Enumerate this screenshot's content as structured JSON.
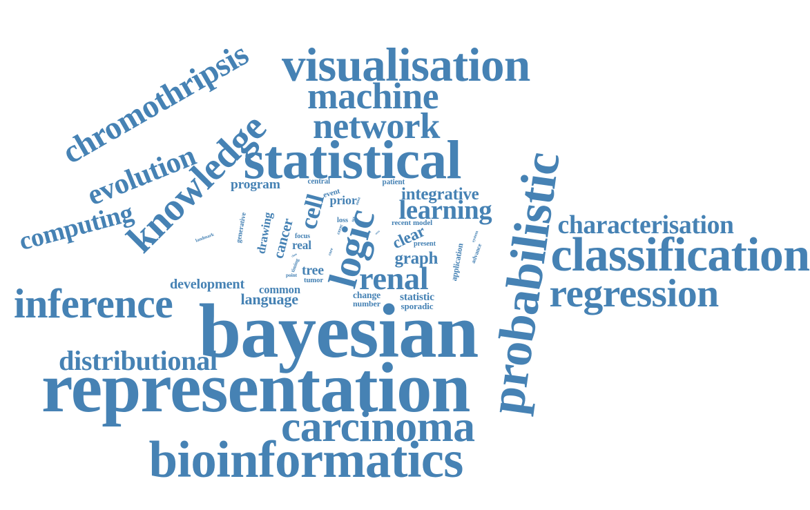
{
  "color": "#4682b4",
  "words": [
    "chromothripsis",
    "evolution",
    "computing",
    "knowledge",
    "visualisation",
    "machine",
    "network",
    "statistical",
    "probabilistic",
    "characterisation",
    "classification",
    "regression",
    "inference",
    "bayesian",
    "distributional",
    "representation",
    "carcinoma",
    "bioinformatics",
    "logic",
    "renal",
    "cell",
    "cancer",
    "clear",
    "learning",
    "integrative",
    "program",
    "event",
    "prior",
    "drawing",
    "generative",
    "landmark",
    "development",
    "common",
    "language",
    "tree",
    "graph",
    "statistic",
    "sporadic",
    "change",
    "number",
    "application",
    "advance",
    "system",
    "present",
    "recent",
    "model",
    "real",
    "timing",
    "focus",
    "central",
    "patient",
    "loss",
    "tumor",
    "point",
    "class",
    "area",
    "task",
    "most",
    "cerec",
    "core",
    "set"
  ]
}
